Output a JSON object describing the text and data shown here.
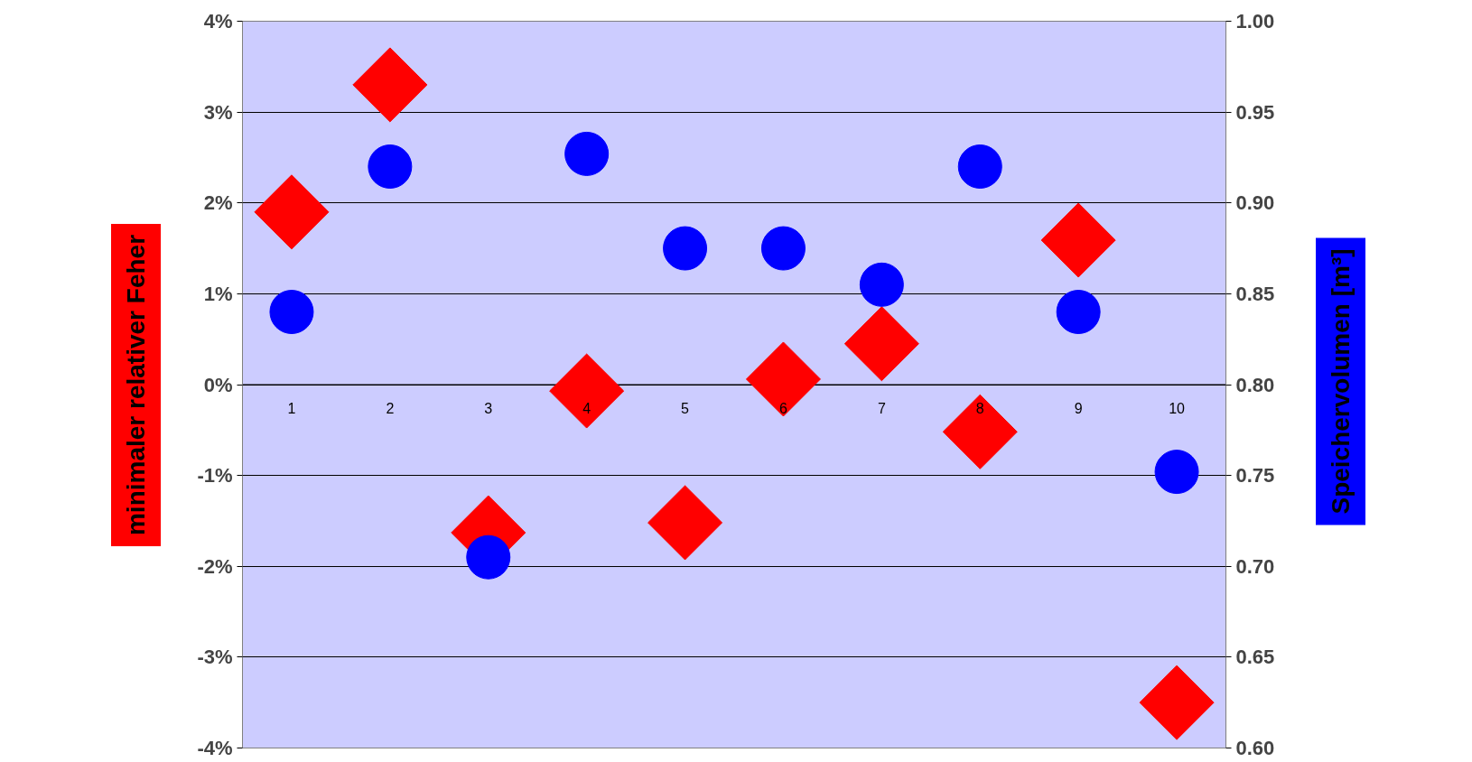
{
  "chart_data": {
    "type": "scatter",
    "ylabel": "minimaler relativer Feher",
    "y2label": "Speichervolumen [m³]",
    "categories": [
      "1",
      "2",
      "3",
      "4",
      "5",
      "6",
      "7",
      "8",
      "9",
      "10"
    ],
    "series": [
      {
        "color": "#ff0000",
        "marker": "diamond",
        "values": [
          1.9,
          3.3,
          -1.63,
          -0.07,
          -1.52,
          0.06,
          0.45,
          -0.52,
          1.59,
          -3.5
        ]
      },
      {
        "color": "#0000ff",
        "marker": "circle",
        "axis": "y2",
        "values": [
          0.84,
          0.92,
          0.705,
          0.927,
          0.875,
          0.875,
          0.855,
          0.92,
          0.84,
          0.752
        ]
      }
    ],
    "ylim": [
      -4,
      4
    ],
    "yticks": [
      {
        "value": -4,
        "label": "-4%"
      },
      {
        "value": -3,
        "label": "-3%"
      },
      {
        "value": -2,
        "label": "-2%"
      },
      {
        "value": -1,
        "label": "-1%"
      },
      {
        "value": 0,
        "label": "0%"
      },
      {
        "value": 1,
        "label": "1%"
      },
      {
        "value": 2,
        "label": "2%"
      },
      {
        "value": 3,
        "label": "3%"
      },
      {
        "value": 4,
        "label": "4%"
      }
    ],
    "y2lim": [
      0.6,
      1.0
    ],
    "y2ticks": [
      {
        "value": 0.6,
        "label": "0.60"
      },
      {
        "value": 0.65,
        "label": "0.65"
      },
      {
        "value": 0.7,
        "label": "0.70"
      },
      {
        "value": 0.75,
        "label": "0.75"
      },
      {
        "value": 0.8,
        "label": "0.80"
      },
      {
        "value": 0.85,
        "label": "0.85"
      },
      {
        "value": 0.9,
        "label": "0.90"
      },
      {
        "value": 0.95,
        "label": "0.95"
      },
      {
        "value": 1.0,
        "label": "1.00"
      }
    ],
    "grid": "y"
  }
}
